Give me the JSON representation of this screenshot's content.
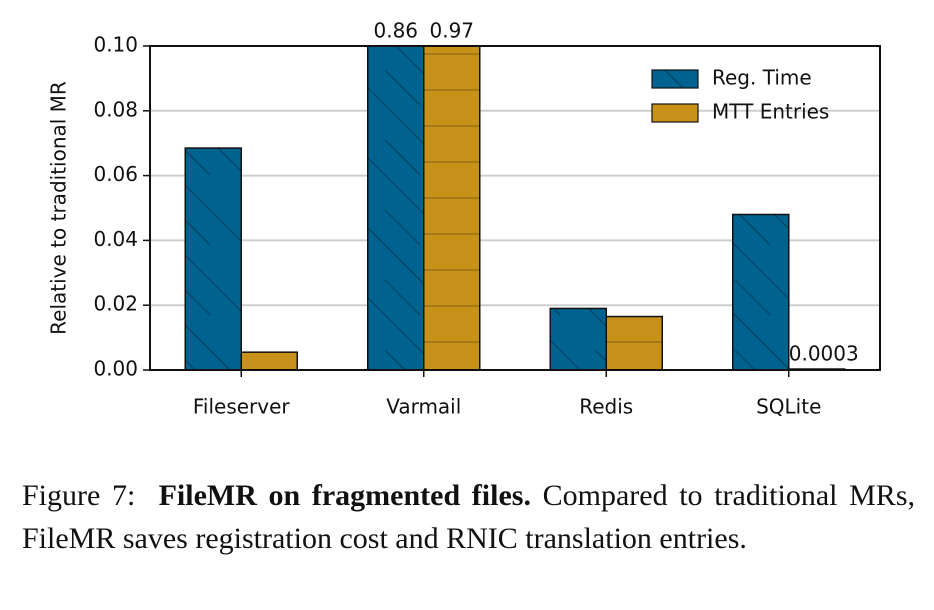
{
  "chart_data": {
    "type": "bar",
    "ylabel": "Relative to traditional MR",
    "categories": [
      "Fileserver",
      "Varmail",
      "Redis",
      "SQLite"
    ],
    "series": [
      {
        "name": "Reg. Time",
        "color": "#00628f",
        "hatch": "\\",
        "values": [
          0.0685,
          0.86,
          0.019,
          0.048
        ],
        "value_labels": [
          null,
          "0.86",
          null,
          null
        ]
      },
      {
        "name": "MTT Entries",
        "color": "#c8921a",
        "hatch": "-",
        "values": [
          0.0055,
          0.97,
          0.0165,
          0.0003
        ],
        "value_labels": [
          null,
          "0.97",
          null,
          "0.0003"
        ]
      }
    ],
    "ylim": [
      0,
      0.1
    ],
    "yticks": [
      {
        "value": 0,
        "label": "0.00"
      },
      0.02,
      0.04,
      0.06,
      0.08,
      {
        "value": 0.1,
        "label": "0.10"
      }
    ],
    "grid": true,
    "legend": "upper right"
  },
  "caption": {
    "label": "Figure 7:",
    "bold": "FileMR on fragmented files.",
    "text": "Compared to traditional MRs, FileMR saves registration cost and RNIC translation entries."
  }
}
